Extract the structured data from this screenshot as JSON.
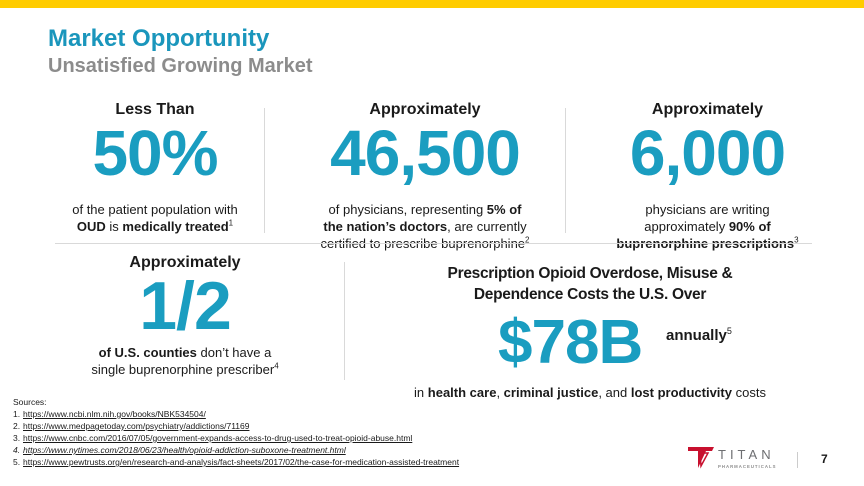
{
  "header": {
    "title": "Market Opportunity",
    "subtitle": "Unsatisfied Growing Market"
  },
  "colors": {
    "accent": "#1A9DC0",
    "top_bar": "#FFCC00",
    "subtitle": "#8C8C8C",
    "logo_red": "#C8102E"
  },
  "stats": [
    {
      "label": "Less Than",
      "value": "50%",
      "desc_parts": [
        "of the patient population with",
        "OUD",
        " is ",
        "medically treated",
        "1"
      ]
    },
    {
      "label": "Approximately",
      "value": "46,500",
      "desc_parts": [
        "of physicians, representing ",
        "5% of",
        "the nation’s doctors",
        ", are currently",
        "certified to prescribe buprenorphine",
        "2"
      ]
    },
    {
      "label": "Approximately",
      "value": "6,000",
      "desc_parts": [
        "physicians are writing",
        "approximately ",
        "90% of",
        "buprenorphine prescriptions",
        "3"
      ]
    },
    {
      "label": "Approximately",
      "value": "1/2",
      "desc_parts": [
        "of U.S. counties",
        " don’t have a",
        "single buprenorphine prescriber",
        "4"
      ]
    }
  ],
  "cost": {
    "heading_line1": "Prescription Opioid Overdose, Misuse &",
    "heading_line2": "Dependence Costs the U.S. Over",
    "value": "$78B",
    "period": "annually",
    "period_ref": "5",
    "note_parts": [
      "in ",
      "health care",
      ", ",
      "criminal justice",
      ", and ",
      "lost productivity",
      " costs"
    ]
  },
  "sources": {
    "label": "Sources:",
    "items": [
      {
        "num": "1.",
        "url": "https://www.ncbi.nlm.nih.gov/books/NBK534504/"
      },
      {
        "num": "2.",
        "url": "https://www.medpagetoday.com/psychiatry/addictions/71169"
      },
      {
        "num": "3.",
        "url": "https://www.cnbc.com/2016/07/05/government-expands-access-to-drug-used-to-treat-opioid-abuse.html"
      },
      {
        "num": "4.",
        "url": "https://www.nytimes.com/2018/06/23/health/opioid-addiction-suboxone-treatment.html"
      },
      {
        "num": "5.",
        "url": "https://www.pewtrusts.org/en/research-and-analysis/fact-sheets/2017/02/the-case-for-medication-assisted-treatment"
      }
    ]
  },
  "footer": {
    "logo_name": "TITAN",
    "logo_tagline": "PHARMACEUTICALS",
    "page_number": "7"
  }
}
